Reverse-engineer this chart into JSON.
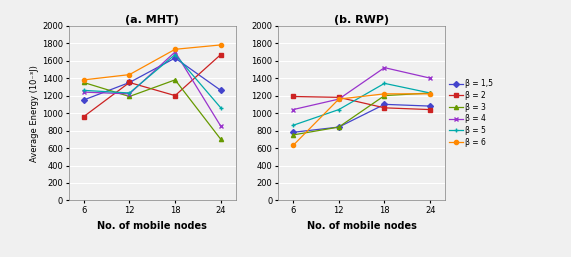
{
  "x": [
    6,
    12,
    18,
    24
  ],
  "mht": {
    "beta_1_5": [
      1150,
      1350,
      1630,
      1260
    ],
    "beta_2": [
      960,
      1350,
      1200,
      1670
    ],
    "beta_3": [
      1350,
      1190,
      1380,
      700
    ],
    "beta_4": [
      1240,
      1220,
      1700,
      850
    ],
    "beta_5": [
      1260,
      1230,
      1670,
      1060
    ],
    "beta_6": [
      1380,
      1440,
      1730,
      1780
    ]
  },
  "rwp": {
    "beta_1_5": [
      780,
      840,
      1100,
      1080
    ],
    "beta_2": [
      1190,
      1180,
      1060,
      1040
    ],
    "beta_3": [
      750,
      840,
      1200,
      1230
    ],
    "beta_4": [
      1040,
      1160,
      1520,
      1400
    ],
    "beta_5": [
      860,
      1040,
      1340,
      1230
    ],
    "beta_6": [
      630,
      1160,
      1220,
      1220
    ]
  },
  "colors": {
    "beta_1_5": "#4444CC",
    "beta_2": "#CC2222",
    "beta_3": "#669900",
    "beta_4": "#9933CC",
    "beta_5": "#00AAAA",
    "beta_6": "#FF8800"
  },
  "markers": {
    "beta_1_5": "D",
    "beta_2": "s",
    "beta_3": "^",
    "beta_4": "x",
    "beta_5": "+",
    "beta_6": "o"
  },
  "legend_labels": [
    "β = 1,5",
    "β = 2",
    "β = 3",
    "β = 4",
    "β = 5",
    "β = 6"
  ],
  "series_keys": [
    "beta_1_5",
    "beta_2",
    "beta_3",
    "beta_4",
    "beta_5",
    "beta_6"
  ],
  "title_mht": "(a. MHT)",
  "title_rwp": "(b. RWP)",
  "xlabel": "No. of mobile nodes",
  "ylabel": "Average Energy (10⁻³J)",
  "ylim": [
    0,
    2000
  ],
  "yticks": [
    0,
    200,
    400,
    600,
    800,
    1000,
    1200,
    1400,
    1600,
    1800,
    2000
  ],
  "xticks": [
    6,
    12,
    18,
    24
  ],
  "bg_color": "#F0F0F0"
}
